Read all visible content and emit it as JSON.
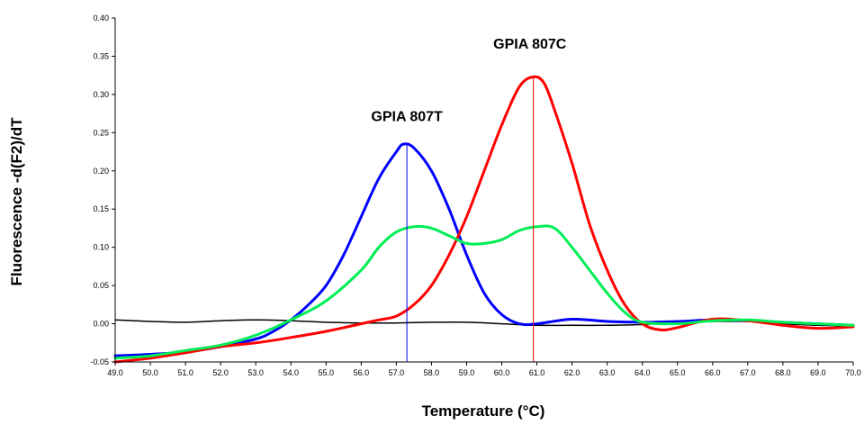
{
  "chart_data": {
    "type": "line",
    "title": "",
    "xlabel": "Temperature (°C)",
    "ylabel": "Fluorescence -d(F2)/dT",
    "xlim": [
      49.0,
      70.0
    ],
    "ylim": [
      -0.05,
      0.4
    ],
    "x_ticks": [
      49.0,
      50.0,
      51.0,
      52.0,
      53.0,
      54.0,
      55.0,
      56.0,
      57.0,
      58.0,
      59.0,
      60.0,
      61.0,
      62.0,
      63.0,
      64.0,
      65.0,
      66.0,
      67.0,
      68.0,
      69.0,
      70.0
    ],
    "x_tick_labels": [
      "49.0",
      "50.0",
      "51.0",
      "52.0",
      "53.0",
      "54.0",
      "55.0",
      "56.0",
      "57.0",
      "58.0",
      "59.0",
      "60.0",
      "61.0",
      "62.0",
      "63.0",
      "64.0",
      "65.0",
      "66.0",
      "67.0",
      "68.0",
      "69.0",
      "70.0"
    ],
    "y_ticks": [
      -0.05,
      0.0,
      0.05,
      0.1,
      0.15,
      0.2,
      0.25,
      0.3,
      0.35,
      0.4
    ],
    "y_tick_labels": [
      "-0.05",
      "0.00",
      "0.05",
      "0.10",
      "0.15",
      "0.20",
      "0.25",
      "0.30",
      "0.35",
      "0.40"
    ],
    "grid": false,
    "legend": "none",
    "series": [
      {
        "color": "#000000",
        "points": [
          [
            49.0,
            0.005
          ],
          [
            50.0,
            0.003
          ],
          [
            51.0,
            0.002
          ],
          [
            52.0,
            0.004
          ],
          [
            53.0,
            0.005
          ],
          [
            54.0,
            0.004
          ],
          [
            55.0,
            0.002
          ],
          [
            56.0,
            0.001
          ],
          [
            57.0,
            0.001
          ],
          [
            58.0,
            0.002
          ],
          [
            59.0,
            0.002
          ],
          [
            60.0,
            0.0
          ],
          [
            61.0,
            -0.002
          ],
          [
            62.0,
            -0.002
          ],
          [
            63.0,
            -0.002
          ],
          [
            64.0,
            -0.001
          ],
          [
            65.0,
            0.002
          ],
          [
            66.0,
            0.003
          ],
          [
            67.0,
            0.003
          ],
          [
            68.0,
            0.0
          ],
          [
            69.0,
            -0.002
          ],
          [
            70.0,
            -0.003
          ]
        ]
      },
      {
        "color": "#0000ff",
        "points": [
          [
            49.0,
            -0.042
          ],
          [
            50.0,
            -0.04
          ],
          [
            51.0,
            -0.037
          ],
          [
            52.0,
            -0.03
          ],
          [
            53.0,
            -0.02
          ],
          [
            53.5,
            -0.01
          ],
          [
            54.0,
            0.005
          ],
          [
            54.5,
            0.025
          ],
          [
            55.0,
            0.05
          ],
          [
            55.5,
            0.09
          ],
          [
            56.0,
            0.14
          ],
          [
            56.5,
            0.19
          ],
          [
            57.0,
            0.225
          ],
          [
            57.2,
            0.235
          ],
          [
            57.5,
            0.23
          ],
          [
            58.0,
            0.2
          ],
          [
            58.5,
            0.15
          ],
          [
            59.0,
            0.09
          ],
          [
            59.5,
            0.04
          ],
          [
            60.0,
            0.012
          ],
          [
            60.5,
            0.0
          ],
          [
            61.0,
            0.0
          ],
          [
            62.0,
            0.006
          ],
          [
            63.0,
            0.003
          ],
          [
            64.0,
            0.002
          ],
          [
            65.0,
            0.003
          ],
          [
            66.0,
            0.005
          ],
          [
            67.0,
            0.004
          ],
          [
            68.0,
            0.002
          ],
          [
            69.0,
            0.0
          ],
          [
            70.0,
            -0.002
          ]
        ]
      },
      {
        "color": "#ff0000",
        "points": [
          [
            49.0,
            -0.05
          ],
          [
            50.0,
            -0.045
          ],
          [
            51.0,
            -0.038
          ],
          [
            52.0,
            -0.03
          ],
          [
            53.0,
            -0.025
          ],
          [
            54.0,
            -0.018
          ],
          [
            55.0,
            -0.01
          ],
          [
            56.0,
            0.0
          ],
          [
            56.5,
            0.005
          ],
          [
            57.0,
            0.01
          ],
          [
            57.5,
            0.025
          ],
          [
            58.0,
            0.05
          ],
          [
            58.5,
            0.09
          ],
          [
            59.0,
            0.14
          ],
          [
            59.5,
            0.2
          ],
          [
            60.0,
            0.26
          ],
          [
            60.5,
            0.31
          ],
          [
            60.9,
            0.323
          ],
          [
            61.2,
            0.315
          ],
          [
            61.5,
            0.28
          ],
          [
            62.0,
            0.21
          ],
          [
            62.5,
            0.13
          ],
          [
            63.0,
            0.07
          ],
          [
            63.5,
            0.025
          ],
          [
            64.0,
            0.0
          ],
          [
            64.5,
            -0.008
          ],
          [
            65.0,
            -0.005
          ],
          [
            66.0,
            0.006
          ],
          [
            67.0,
            0.004
          ],
          [
            68.0,
            -0.002
          ],
          [
            69.0,
            -0.006
          ],
          [
            70.0,
            -0.004
          ]
        ]
      },
      {
        "color": "#00ee55",
        "points": [
          [
            49.0,
            -0.045
          ],
          [
            50.0,
            -0.042
          ],
          [
            51.0,
            -0.035
          ],
          [
            52.0,
            -0.028
          ],
          [
            53.0,
            -0.015
          ],
          [
            54.0,
            0.005
          ],
          [
            55.0,
            0.03
          ],
          [
            56.0,
            0.07
          ],
          [
            56.5,
            0.1
          ],
          [
            57.0,
            0.12
          ],
          [
            57.5,
            0.127
          ],
          [
            58.0,
            0.125
          ],
          [
            58.5,
            0.115
          ],
          [
            59.0,
            0.105
          ],
          [
            59.5,
            0.105
          ],
          [
            60.0,
            0.11
          ],
          [
            60.5,
            0.122
          ],
          [
            61.0,
            0.127
          ],
          [
            61.5,
            0.125
          ],
          [
            62.0,
            0.1
          ],
          [
            62.5,
            0.07
          ],
          [
            63.0,
            0.04
          ],
          [
            63.5,
            0.015
          ],
          [
            64.0,
            0.002
          ],
          [
            65.0,
            0.0
          ],
          [
            66.0,
            0.004
          ],
          [
            67.0,
            0.005
          ],
          [
            68.0,
            0.002
          ],
          [
            69.0,
            0.0
          ],
          [
            70.0,
            -0.002
          ]
        ]
      }
    ],
    "vertical_lines": [
      {
        "x": 57.3,
        "y_top": 0.234,
        "color": "#0000ff"
      },
      {
        "x": 60.9,
        "y_top": 0.323,
        "color": "#ff0000"
      }
    ],
    "annotations": [
      {
        "text": "GPIA 807T",
        "x": 57.3,
        "y": 0.265
      },
      {
        "text": "GPIA 807C",
        "x": 60.8,
        "y": 0.36
      }
    ]
  }
}
